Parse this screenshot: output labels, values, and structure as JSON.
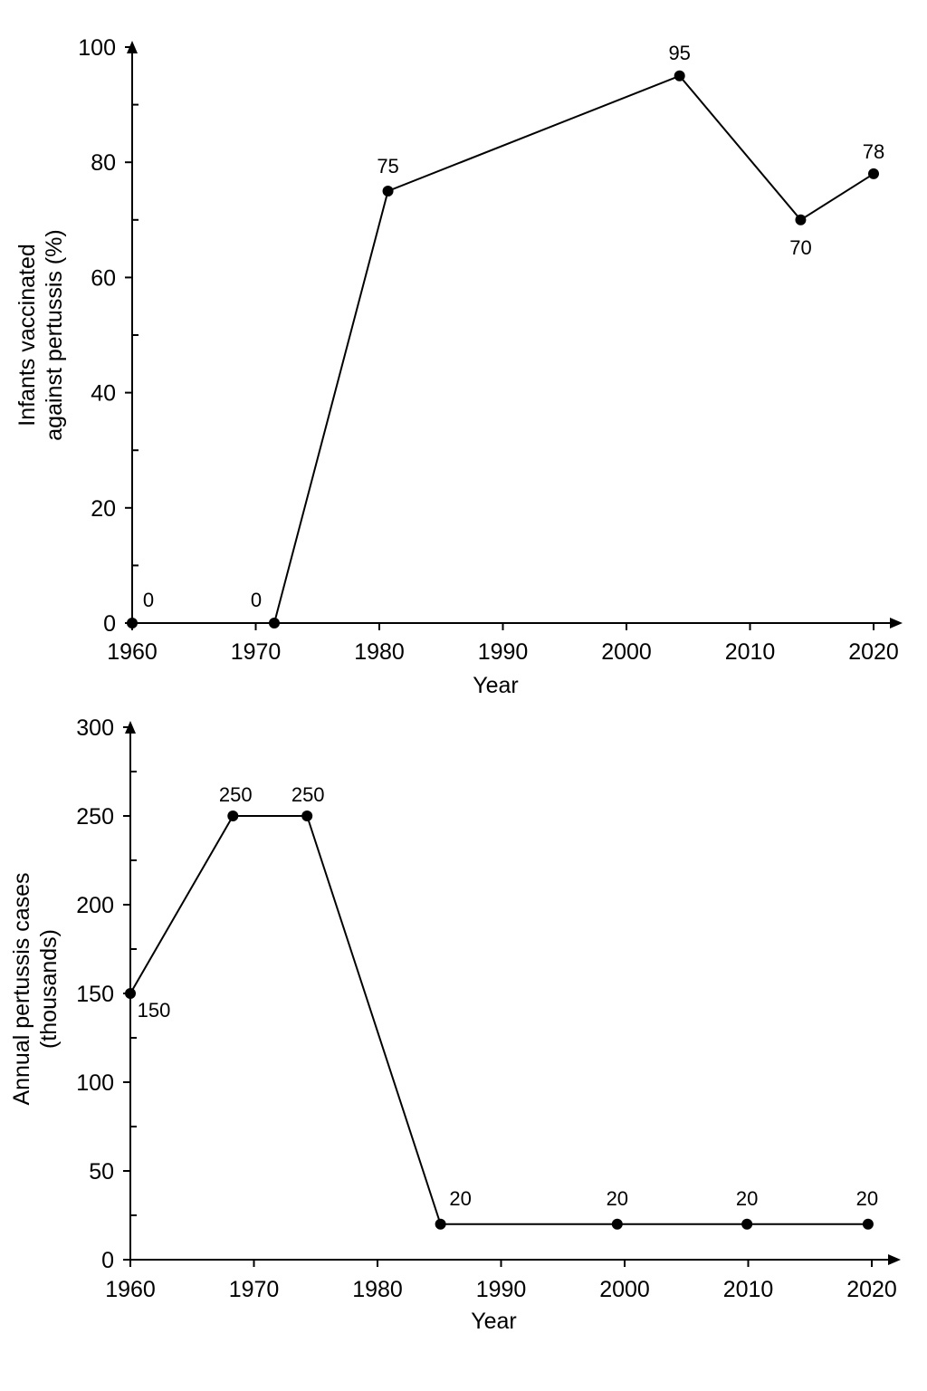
{
  "chart_data": [
    {
      "type": "line",
      "xlabel": "Year",
      "ylabel_lines": [
        "Infants vaccinated",
        "against pertussis (%)"
      ],
      "xlim": [
        1960,
        2020
      ],
      "ylim": [
        0,
        100
      ],
      "x_ticks": [
        1960,
        1970,
        1980,
        1990,
        2000,
        2010,
        2020
      ],
      "y_ticks": [
        0,
        20,
        40,
        60,
        80,
        100
      ],
      "points": [
        {
          "x": 1960,
          "y": 0,
          "label": "0"
        },
        {
          "x": 1971.5,
          "y": 0,
          "label": "0"
        },
        {
          "x": 1980.7,
          "y": 75,
          "label": "75"
        },
        {
          "x": 2004.3,
          "y": 95,
          "label": "95"
        },
        {
          "x": 2014.1,
          "y": 70,
          "label": "70"
        },
        {
          "x": 2020,
          "y": 78,
          "label": "78"
        }
      ]
    },
    {
      "type": "line",
      "xlabel": "Year",
      "ylabel_lines": [
        "Annual pertussis cases",
        "(thousands)"
      ],
      "xlim": [
        1960,
        2020
      ],
      "ylim": [
        0,
        300
      ],
      "x_ticks": [
        1960,
        1970,
        1980,
        1990,
        2000,
        2010,
        2020
      ],
      "y_ticks": [
        0,
        50,
        100,
        150,
        200,
        250,
        300
      ],
      "points": [
        {
          "x": 1960,
          "y": 150,
          "label": "150"
        },
        {
          "x": 1968.3,
          "y": 250,
          "label": "250"
        },
        {
          "x": 1974.3,
          "y": 250,
          "label": "250"
        },
        {
          "x": 1985.1,
          "y": 20,
          "label": "20"
        },
        {
          "x": 1999.4,
          "y": 20,
          "label": "20"
        },
        {
          "x": 2009.9,
          "y": 20,
          "label": "20"
        },
        {
          "x": 2019.7,
          "y": 20,
          "label": "20"
        }
      ]
    }
  ]
}
